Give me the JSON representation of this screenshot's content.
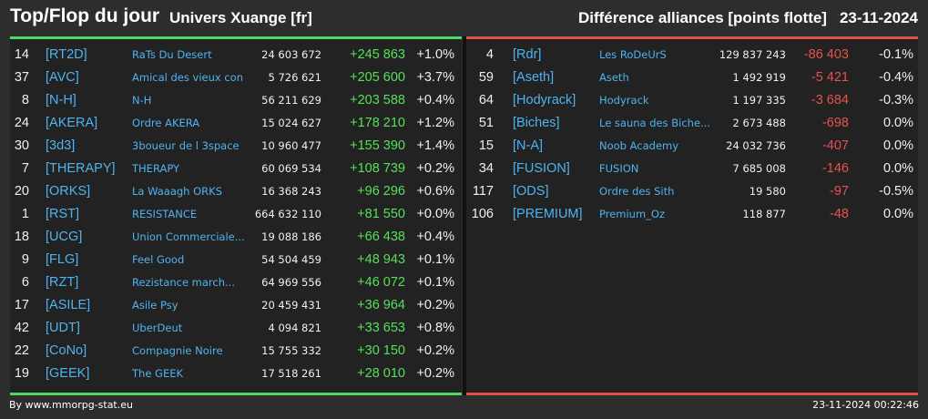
{
  "header": {
    "title": "Top/Flop du jour",
    "universe": "Univers Xuange [fr]",
    "category": "Différence alliances [points flotte]",
    "date": "23-11-2024"
  },
  "colors": {
    "top_accent": "#4cd964",
    "flop_accent": "#e0504a",
    "tag_color": "#4fb3f0",
    "positive": "#56e05a",
    "negative": "#e8524c"
  },
  "top": [
    {
      "rank": "14",
      "tag": "[RT2D]",
      "name": "RaTs Du Desert",
      "points": "24 603 672",
      "diff": "+245 863",
      "pct": "+1.0%"
    },
    {
      "rank": "37",
      "tag": "[AVC]",
      "name": "Amical des vieux con",
      "points": "5 726 621",
      "diff": "+205 600",
      "pct": "+3.7%"
    },
    {
      "rank": "8",
      "tag": "[N-H]",
      "name": "N-H",
      "points": "56 211 629",
      "diff": "+203 588",
      "pct": "+0.4%"
    },
    {
      "rank": "24",
      "tag": "[AKERA]",
      "name": "Ordre AKERA",
      "points": "15 024 627",
      "diff": "+178 210",
      "pct": "+1.2%"
    },
    {
      "rank": "30",
      "tag": "[3d3]",
      "name": "3boueur de l 3space",
      "points": "10 960 477",
      "diff": "+155 390",
      "pct": "+1.4%"
    },
    {
      "rank": "7",
      "tag": "[THERAPY]",
      "name": "THERAPY",
      "points": "60 069 534",
      "diff": "+108 739",
      "pct": "+0.2%"
    },
    {
      "rank": "20",
      "tag": "[ORKS]",
      "name": "La Waaagh ORKS",
      "points": "16 368 243",
      "diff": "+96 296",
      "pct": "+0.6%"
    },
    {
      "rank": "1",
      "tag": "[RST]",
      "name": "RESISTANCE",
      "points": "664 632 110",
      "diff": "+81 550",
      "pct": "+0.0%"
    },
    {
      "rank": "18",
      "tag": "[UCG]",
      "name": "Union Commerciale...",
      "points": "19 088 186",
      "diff": "+66 438",
      "pct": "+0.4%"
    },
    {
      "rank": "9",
      "tag": "[FLG]",
      "name": "Feel Good",
      "points": "54 504 459",
      "diff": "+48 943",
      "pct": "+0.1%"
    },
    {
      "rank": "6",
      "tag": "[RZT]",
      "name": "Rezistance march...",
      "points": "64 969 556",
      "diff": "+46 072",
      "pct": "+0.1%"
    },
    {
      "rank": "17",
      "tag": "[ASILE]",
      "name": "Asile Psy",
      "points": "20 459 431",
      "diff": "+36 964",
      "pct": "+0.2%"
    },
    {
      "rank": "42",
      "tag": "[UDT]",
      "name": "UberDeut",
      "points": "4 094 821",
      "diff": "+33 653",
      "pct": "+0.8%"
    },
    {
      "rank": "22",
      "tag": "[CoNo]",
      "name": "Compagnie Noire",
      "points": "15 755 332",
      "diff": "+30 150",
      "pct": "+0.2%"
    },
    {
      "rank": "19",
      "tag": "[GEEK]",
      "name": "The GEEK",
      "points": "17 518 261",
      "diff": "+28 010",
      "pct": "+0.2%"
    }
  ],
  "flop": [
    {
      "rank": "4",
      "tag": "[Rdr]",
      "name": "Les RoDeUrS",
      "points": "129 837 243",
      "diff": "-86 403",
      "pct": "-0.1%"
    },
    {
      "rank": "59",
      "tag": "[Aseth]",
      "name": "Aseth",
      "points": "1 492 919",
      "diff": "-5 421",
      "pct": "-0.4%"
    },
    {
      "rank": "64",
      "tag": "[Hodyrack]",
      "name": "Hodyrack",
      "points": "1 197 335",
      "diff": "-3 684",
      "pct": "-0.3%"
    },
    {
      "rank": "51",
      "tag": "[Biches]",
      "name": "Le sauna des Biche...",
      "points": "2 673 488",
      "diff": "-698",
      "pct": "0.0%"
    },
    {
      "rank": "15",
      "tag": "[N-A]",
      "name": "Noob Academy",
      "points": "24 032 736",
      "diff": "-407",
      "pct": "0.0%"
    },
    {
      "rank": "34",
      "tag": "[FUSION]",
      "name": "FUSION",
      "points": "7 685 008",
      "diff": "-146",
      "pct": "0.0%"
    },
    {
      "rank": "117",
      "tag": "[ODS]",
      "name": "Ordre des Sith",
      "points": "19 580",
      "diff": "-97",
      "pct": "-0.5%"
    },
    {
      "rank": "106",
      "tag": "[PREMIUM]",
      "name": "Premium_Oz",
      "points": "118 877",
      "diff": "-48",
      "pct": "0.0%"
    }
  ],
  "footer": {
    "source": "By www.mmorpg-stat.eu",
    "timestamp": "23-11-2024 00:22:46"
  }
}
